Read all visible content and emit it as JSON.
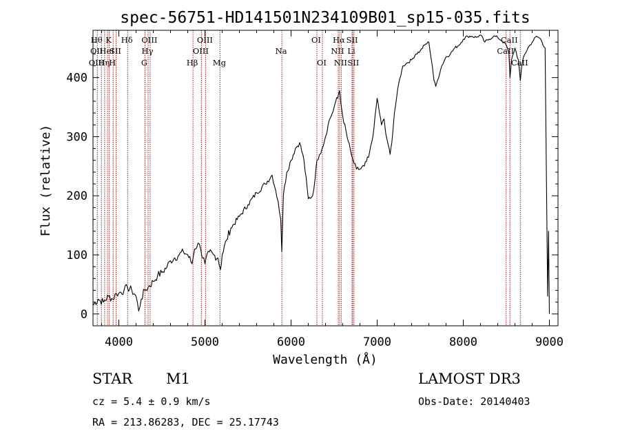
{
  "chart_data": {
    "type": "line",
    "title": "spec-56751-HD141501N234109B01_sp15-035.fits",
    "xlabel": "Wavelength (Å)",
    "ylabel": "Flux (relative)",
    "xlim": [
      3700,
      9100
    ],
    "ylim": [
      -20,
      480
    ],
    "xticks": [
      4000,
      5000,
      6000,
      7000,
      8000,
      9000
    ],
    "yticks": [
      0,
      100,
      200,
      300,
      400
    ],
    "series": [
      {
        "name": "spectrum",
        "x": [
          3700,
          3760,
          3820,
          3880,
          3930,
          3970,
          4000,
          4060,
          4100,
          4150,
          4200,
          4230,
          4260,
          4300,
          4340,
          4400,
          4450,
          4500,
          4560,
          4600,
          4650,
          4700,
          4750,
          4800,
          4850,
          4880,
          4920,
          4950,
          5000,
          5050,
          5100,
          5150,
          5180,
          5200,
          5250,
          5300,
          5400,
          5500,
          5600,
          5700,
          5780,
          5820,
          5850,
          5880,
          5893,
          5910,
          5950,
          6000,
          6050,
          6100,
          6150,
          6200,
          6250,
          6280,
          6300,
          6330,
          6360,
          6400,
          6430,
          6450,
          6480,
          6500,
          6520,
          6540,
          6563,
          6580,
          6600,
          6650,
          6700,
          6730,
          6760,
          6800,
          6850,
          6900,
          6950,
          7000,
          7050,
          7080,
          7100,
          7130,
          7150,
          7170,
          7200,
          7250,
          7300,
          7350,
          7400,
          7450,
          7500,
          7550,
          7600,
          7640,
          7660,
          7680,
          7700,
          7750,
          7800,
          7850,
          7900,
          7950,
          8000,
          8050,
          8100,
          8150,
          8200,
          8250,
          8300,
          8350,
          8400,
          8450,
          8500,
          8530,
          8542,
          8560,
          8600,
          8640,
          8662,
          8680,
          8700,
          8750,
          8800,
          8850,
          8900,
          8950,
          8980,
          8990,
          9000
        ],
        "values": [
          15,
          25,
          20,
          30,
          25,
          35,
          35,
          40,
          45,
          40,
          30,
          5,
          25,
          40,
          45,
          55,
          65,
          70,
          80,
          90,
          95,
          100,
          105,
          100,
          85,
          110,
          120,
          110,
          85,
          105,
          100,
          95,
          75,
          100,
          125,
          145,
          165,
          185,
          205,
          220,
          235,
          210,
          190,
          160,
          105,
          200,
          240,
          260,
          280,
          290,
          260,
          195,
          200,
          230,
          260,
          270,
          280,
          300,
          320,
          330,
          340,
          350,
          360,
          365,
          378,
          355,
          335,
          300,
          270,
          255,
          245,
          245,
          250,
          265,
          300,
          365,
          320,
          330,
          305,
          285,
          270,
          290,
          340,
          390,
          420,
          425,
          430,
          440,
          445,
          455,
          460,
          420,
          395,
          385,
          395,
          420,
          435,
          440,
          450,
          455,
          465,
          470,
          470,
          468,
          472,
          460,
          465,
          470,
          468,
          462,
          455,
          440,
          400,
          430,
          450,
          430,
          395,
          420,
          435,
          450,
          460,
          470,
          465,
          450,
          30,
          140,
          0
        ]
      }
    ],
    "lines": [
      {
        "wave": 3750,
        "labels": [
          "Hθ",
          "OII",
          "OIII"
        ],
        "rows": [
          0,
          1,
          2
        ]
      },
      {
        "wave": 3798,
        "labels": [],
        "rows": []
      },
      {
        "wave": 3835,
        "labels": [
          "Hη"
        ],
        "rows": [
          2
        ]
      },
      {
        "wave": 3869,
        "labels": [
          "HeI"
        ],
        "rows": [
          1
        ]
      },
      {
        "wave": 3889,
        "labels": [
          "K"
        ],
        "rows": [
          0
        ]
      },
      {
        "wave": 3934,
        "labels": [
          "H"
        ],
        "rows": [
          2
        ]
      },
      {
        "wave": 3968,
        "labels": [
          "SII"
        ],
        "rows": [
          1
        ]
      },
      {
        "wave": 4102,
        "labels": [
          "Hδ"
        ],
        "rows": [
          0
        ]
      },
      {
        "wave": 4304,
        "labels": [
          "G"
        ],
        "rows": [
          2
        ]
      },
      {
        "wave": 4340,
        "labels": [
          "Hγ"
        ],
        "rows": [
          1
        ]
      },
      {
        "wave": 4363,
        "labels": [
          "OIII"
        ],
        "rows": [
          0
        ]
      },
      {
        "wave": 4861,
        "labels": [
          "Hβ"
        ],
        "rows": [
          2
        ]
      },
      {
        "wave": 4959,
        "labels": [
          "OIII"
        ],
        "rows": [
          1
        ]
      },
      {
        "wave": 5007,
        "labels": [
          "OIII"
        ],
        "rows": [
          0
        ]
      },
      {
        "wave": 5175,
        "labels": [
          "Mg"
        ],
        "rows": [
          2
        ]
      },
      {
        "wave": 5893,
        "labels": [
          "Na"
        ],
        "rows": [
          1
        ]
      },
      {
        "wave": 6300,
        "labels": [
          "OI"
        ],
        "rows": [
          0
        ]
      },
      {
        "wave": 6364,
        "labels": [
          "OI"
        ],
        "rows": [
          2
        ]
      },
      {
        "wave": 6548,
        "labels": [
          "NII"
        ],
        "rows": [
          1
        ]
      },
      {
        "wave": 6563,
        "labels": [
          "Hα"
        ],
        "rows": [
          0
        ]
      },
      {
        "wave": 6583,
        "labels": [
          "NII"
        ],
        "rows": [
          2
        ]
      },
      {
        "wave": 6708,
        "labels": [
          "Li"
        ],
        "rows": [
          1
        ]
      },
      {
        "wave": 6717,
        "labels": [
          "SII"
        ],
        "rows": [
          0
        ]
      },
      {
        "wave": 6731,
        "labels": [
          "SII"
        ],
        "rows": [
          2
        ]
      },
      {
        "wave": 8498,
        "labels": [
          "CaII"
        ],
        "rows": [
          1
        ]
      },
      {
        "wave": 8542,
        "labels": [
          "CaII"
        ],
        "rows": [
          0
        ]
      },
      {
        "wave": 8662,
        "labels": [
          "CaII"
        ],
        "rows": [
          2
        ]
      }
    ]
  },
  "info": {
    "class": "STAR",
    "subclass": "M1",
    "survey": "LAMOST DR3",
    "cz": "cz = 5.4 ± 0.9 km/s",
    "obs_date": "Obs-Date: 20140403",
    "coords": "RA = 213.86283, DEC =  25.17743"
  }
}
